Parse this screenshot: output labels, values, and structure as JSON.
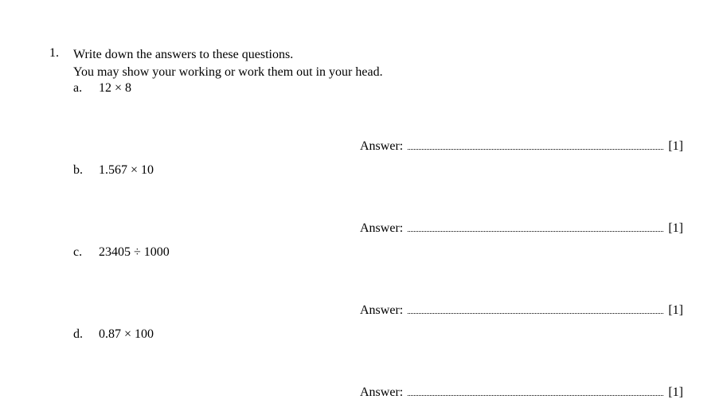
{
  "question_number": "1.",
  "instruction_line1": "Write down the answers to these questions.",
  "instruction_line2": "You may show your working or work them out in your head.",
  "answer_label": "Answer:",
  "parts": {
    "a": {
      "label": "a.",
      "text": "12 × 8",
      "marks": "[1]"
    },
    "b": {
      "label": "b.",
      "text": "1.567 × 10",
      "marks": "[1]"
    },
    "c": {
      "label": "c.",
      "text": "23405 ÷ 1000",
      "marks": "[1]"
    },
    "d": {
      "label": "d.",
      "text": "0.87 × 100",
      "marks": "[1]"
    }
  }
}
